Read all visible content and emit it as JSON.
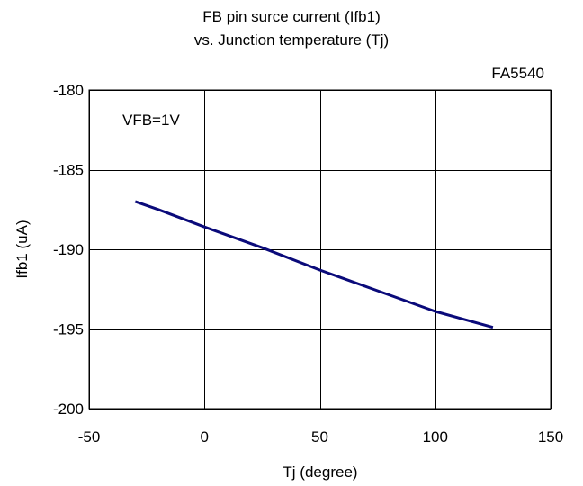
{
  "chart_data": {
    "type": "line",
    "title": [
      "FB pin surce current (Ifb1)",
      "vs. Junction temperature (Tj)"
    ],
    "part_number": "FA5540",
    "annotation": "VFB=1V",
    "xlabel": "Tj (degree)",
    "ylabel": "Ifb1 (uA)",
    "xlim": [
      -50,
      150
    ],
    "ylim": [
      -200,
      -180
    ],
    "xticks": [
      -50,
      0,
      50,
      100,
      150
    ],
    "yticks": [
      -180,
      -185,
      -190,
      -195,
      -200
    ],
    "grid": true,
    "series": [
      {
        "color": "#0a0a7a",
        "x": [
          -30,
          -20,
          0,
          25,
          50,
          75,
          100,
          125
        ],
        "y": [
          -187.0,
          -187.5,
          -188.6,
          -189.9,
          -191.3,
          -192.6,
          -193.9,
          -194.9
        ]
      }
    ]
  }
}
